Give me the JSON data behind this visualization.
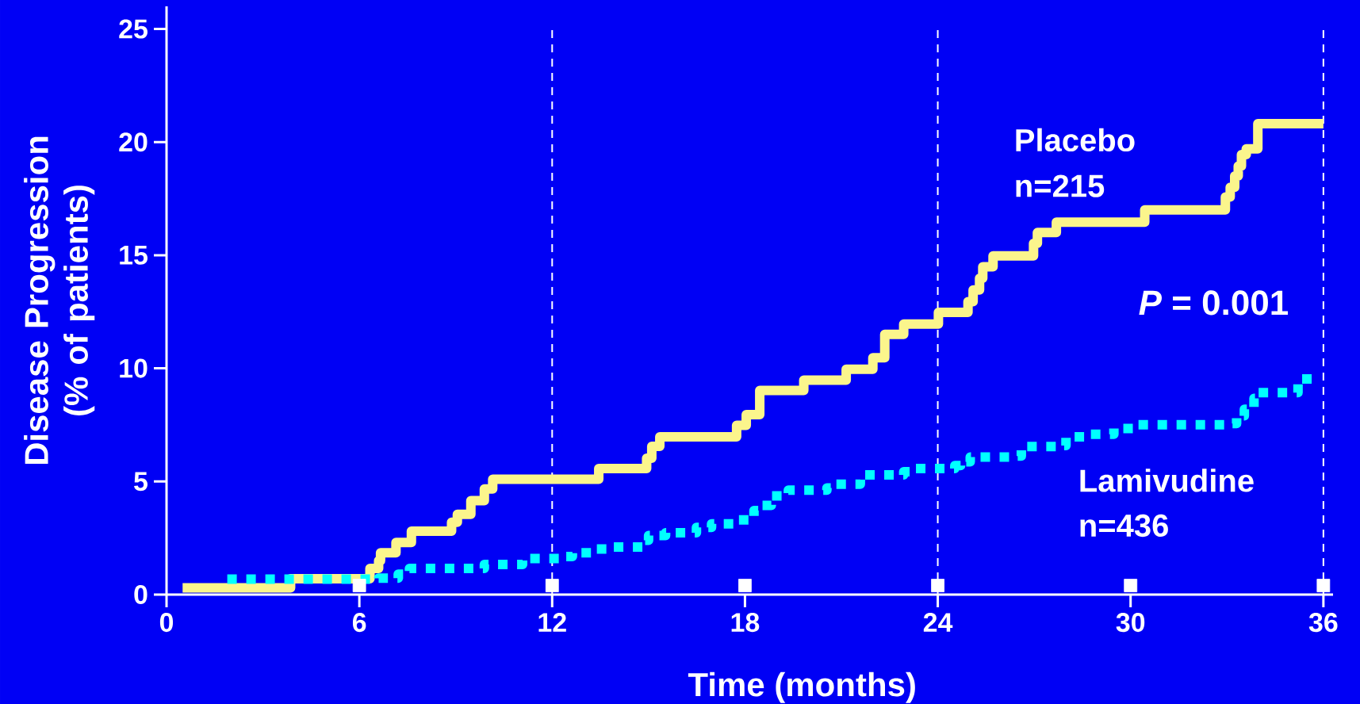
{
  "chart_data": {
    "type": "step",
    "xlabel": "Time (months)",
    "ylabel": "Disease Progression (% of patients)",
    "xlim": [
      0,
      36.3
    ],
    "ylim": [
      0,
      26
    ],
    "xticks": [
      0,
      6,
      12,
      18,
      24,
      30,
      36
    ],
    "yticks": [
      0,
      5,
      10,
      15,
      20,
      25
    ],
    "grid": false,
    "legend": false,
    "marker": "none",
    "series": [
      {
        "name": "Placebo",
        "color": "#fbf58c",
        "line_style": "solid",
        "x": [
          0.5,
          3.86,
          6.33,
          6.6,
          6.66,
          7.14,
          7.62,
          8.87,
          9.05,
          9.47,
          9.89,
          10.15,
          13.45,
          14.94,
          15.1,
          15.35,
          17.74,
          18.04,
          18.46,
          19.83,
          21.15,
          21.98,
          22.35,
          22.94,
          24.02,
          24.94,
          25.1,
          25.3,
          25.4,
          25.72,
          26.98,
          27.1,
          27.69,
          30.44,
          32.95,
          33.1,
          33.24,
          33.35,
          33.45,
          33.6,
          33.96,
          36
        ],
        "values": [
          0.3,
          0.7,
          1.16,
          1.5,
          1.85,
          2.3,
          2.8,
          3.2,
          3.55,
          4.15,
          4.67,
          5.1,
          5.57,
          6.03,
          6.55,
          6.97,
          7.48,
          7.95,
          9.02,
          9.48,
          9.96,
          10.47,
          11.5,
          11.96,
          12.47,
          12.95,
          13.46,
          13.98,
          14.49,
          14.97,
          15.52,
          16.0,
          16.46,
          17.0,
          17.57,
          18.0,
          18.5,
          18.94,
          19.45,
          19.7,
          20.81,
          20.81
        ]
      },
      {
        "name": "Lamivudine",
        "color": "#00ffff",
        "line_style": "dotted",
        "x": [
          1.89,
          6.6,
          7.21,
          7.56,
          9.89,
          11.08,
          12.28,
          12.63,
          13.38,
          13.86,
          14.81,
          15.0,
          15.53,
          16.49,
          16.96,
          17.74,
          18.16,
          18.28,
          18.52,
          18.82,
          19.35,
          20.55,
          20.67,
          21.59,
          22.94,
          23.3,
          24.53,
          24.71,
          25.01,
          26.26,
          26.6,
          27.69,
          27.99,
          28.59,
          29.48,
          30.07,
          33.06,
          33.3,
          33.54,
          33.84,
          33.9,
          35.21,
          35.3,
          35.87
        ],
        "values": [
          0.68,
          0.73,
          0.9,
          1.16,
          1.33,
          1.59,
          1.68,
          1.85,
          2.01,
          2.1,
          2.4,
          2.61,
          2.73,
          2.97,
          3.13,
          3.3,
          3.47,
          3.71,
          3.94,
          4.36,
          4.62,
          4.71,
          4.88,
          5.29,
          5.43,
          5.57,
          5.7,
          5.87,
          6.08,
          6.12,
          6.54,
          6.59,
          6.97,
          7.09,
          7.34,
          7.51,
          7.56,
          7.9,
          8.19,
          8.67,
          8.93,
          9.36,
          9.53,
          9.53
        ]
      },
      {
        "type": "scatter",
        "color": "#ffffff",
        "marker": "square",
        "x": [
          6,
          12,
          18,
          24,
          30,
          36
        ],
        "values": [
          0.4,
          0.4,
          0.4,
          0.4,
          0.4,
          0.4
        ]
      }
    ],
    "ref_lines": [
      {
        "axis": "x",
        "value": 12,
        "color": "#ffffff",
        "line_style": "dashed"
      },
      {
        "axis": "x",
        "value": 24,
        "color": "#ffffff",
        "line_style": "dashed"
      },
      {
        "axis": "x",
        "value": 36,
        "color": "#ffffff",
        "line_style": "dashed"
      }
    ],
    "annotations": [
      "n=215",
      "n=436",
      "*P* = 0.001"
    ]
  }
}
